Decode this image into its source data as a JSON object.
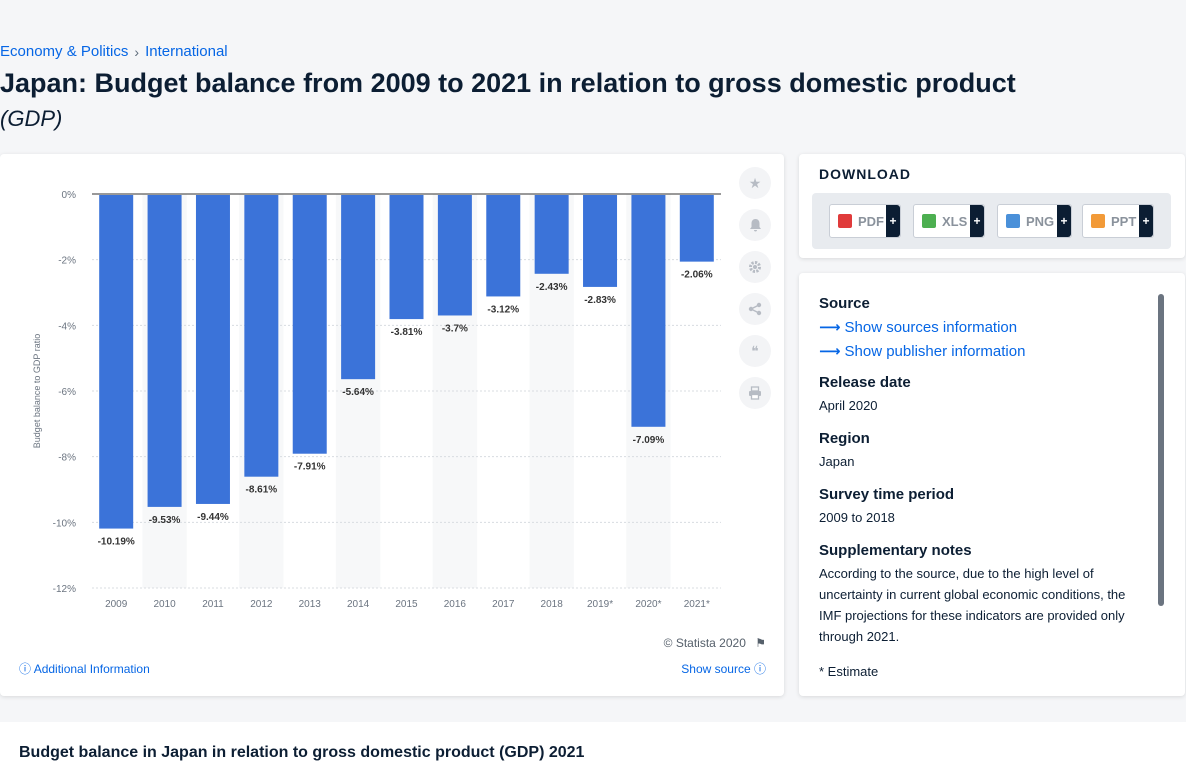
{
  "breadcrumb": {
    "items": [
      "Economy & Politics",
      "International"
    ],
    "sep": "›"
  },
  "page": {
    "title": "Japan: Budget balance from 2009 to 2021 in relation to gross domestic product",
    "subtitle": "(GDP)"
  },
  "chart_data": {
    "type": "bar",
    "categories": [
      "2009",
      "2010",
      "2011",
      "2012",
      "2013",
      "2014",
      "2015",
      "2016",
      "2017",
      "2018",
      "2019*",
      "2020*",
      "2021*"
    ],
    "values": [
      -10.19,
      -9.53,
      -9.44,
      -8.61,
      -7.91,
      -5.64,
      -3.81,
      -3.7,
      -3.12,
      -2.43,
      -2.83,
      -7.09,
      -2.06
    ],
    "value_labels": [
      "-10.19%",
      "-9.53%",
      "-9.44%",
      "-8.61%",
      "-7.91%",
      "-5.64%",
      "-3.81%",
      "-3.7%",
      "-3.12%",
      "-2.43%",
      "-2.83%",
      "-7.09%",
      "-2.06%"
    ],
    "ylabel": "Budget balance to GDP ratio",
    "ylim": [
      -12,
      0
    ],
    "yticks": [
      0,
      -2,
      -4,
      -6,
      -8,
      -10,
      -12
    ],
    "ytick_labels": [
      "0%",
      "-2%",
      "-4%",
      "-6%",
      "-8%",
      "-10%",
      "-12%"
    ],
    "grid": true,
    "bar_color": "#3b73d9"
  },
  "tools": [
    "star-icon",
    "bell-icon",
    "gear-icon",
    "share-icon",
    "quote-icon",
    "print-icon"
  ],
  "chart_footer": {
    "copyright": "© Statista 2020",
    "additional": "Additional Information",
    "show_source": "Show source"
  },
  "download": {
    "title": "DOWNLOAD",
    "buttons": [
      {
        "label": "PDF",
        "color": "#e03b3b"
      },
      {
        "label": "XLS",
        "color": "#4caf50"
      },
      {
        "label": "PNG",
        "color": "#4a90d9"
      },
      {
        "label": "PPT",
        "color": "#f29a38"
      }
    ],
    "plus": "+"
  },
  "info": {
    "source_h": "Source",
    "source_link1": "Show sources information",
    "source_link2": "Show publisher information",
    "release_h": "Release date",
    "release_v": "April 2020",
    "region_h": "Region",
    "region_v": "Japan",
    "survey_h": "Survey time period",
    "survey_v": "2009 to 2018",
    "supp_h": "Supplementary notes",
    "supp_v": "According to the source, due to the high level of uncertainty in current global economic conditions, the IMF projections for these indicators are provided only through 2021.",
    "estimate": "* Estimate"
  },
  "bottom": {
    "title": "Budget balance in Japan in relation to gross domestic product (GDP) 2021"
  }
}
